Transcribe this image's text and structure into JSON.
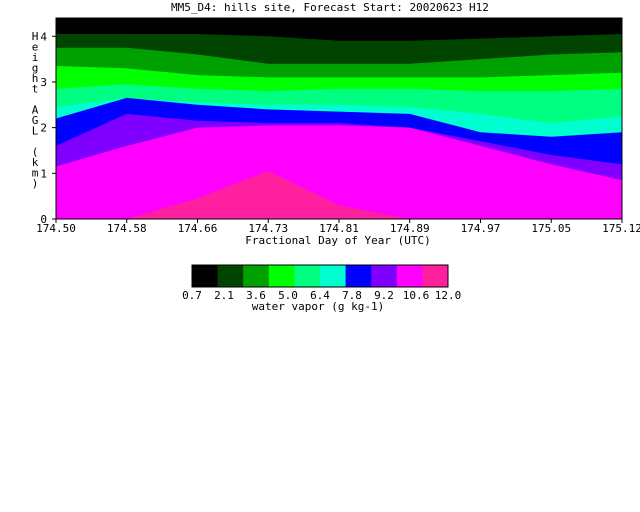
{
  "chart_data": {
    "type": "heatmap",
    "title": "MM5_D4: hills site,  Forecast Start: 20020623 H12",
    "xlabel": "Fractional Day of Year (UTC)",
    "ylabel": "Height AGL (km)",
    "xlim": [
      174.5,
      175.12
    ],
    "ylim": [
      0,
      4.4
    ],
    "x_ticks": [
      "174.50",
      "174.58",
      "174.66",
      "174.73",
      "174.81",
      "174.89",
      "174.97",
      "175.05",
      "175.12"
    ],
    "y_ticks": [
      "0",
      "1",
      "2",
      "3",
      "4"
    ],
    "colorbar": {
      "label": "water vapor (g kg-1)",
      "tick_labels": [
        "0.7",
        "2.1",
        "3.6",
        "5.0",
        "6.4",
        "7.8",
        "9.2",
        "10.6",
        "12.0"
      ],
      "colors": [
        "#000000",
        "#004400",
        "#00a000",
        "#00ff00",
        "#00ff80",
        "#00ffd0",
        "#0000ff",
        "#8000ff",
        "#ff00ff",
        "#ff20a0"
      ]
    },
    "bands": [
      {
        "level": 1,
        "color": "#004400",
        "top_y": [
          4.05,
          4.05,
          4.05,
          4.0,
          3.9,
          3.9,
          3.95,
          4.0,
          4.05
        ]
      },
      {
        "level": 2,
        "color": "#00a000",
        "top_y": [
          3.75,
          3.75,
          3.6,
          3.4,
          3.4,
          3.4,
          3.5,
          3.6,
          3.65
        ]
      },
      {
        "level": 3,
        "color": "#00ff00",
        "top_y": [
          3.35,
          3.3,
          3.15,
          3.1,
          3.1,
          3.1,
          3.1,
          3.15,
          3.2
        ]
      },
      {
        "level": 4,
        "color": "#00ff80",
        "top_y": [
          2.85,
          2.95,
          2.85,
          2.8,
          2.85,
          2.85,
          2.8,
          2.8,
          2.85
        ]
      },
      {
        "level": 5,
        "color": "#00ffd0",
        "top_y": [
          2.45,
          2.65,
          2.55,
          2.5,
          2.5,
          2.45,
          2.3,
          2.1,
          2.25
        ]
      },
      {
        "level": 6,
        "color": "#0000ff",
        "top_y": [
          2.2,
          2.65,
          2.5,
          2.4,
          2.35,
          2.3,
          1.9,
          1.8,
          1.9
        ]
      },
      {
        "level": 7,
        "color": "#8000ff",
        "top_y": [
          1.6,
          2.3,
          2.15,
          2.1,
          2.1,
          2.0,
          1.7,
          1.4,
          1.2
        ]
      },
      {
        "level": 8,
        "color": "#ff00ff",
        "top_y": [
          1.15,
          1.6,
          2.0,
          2.05,
          2.05,
          2.0,
          1.6,
          1.2,
          0.85
        ]
      },
      {
        "level": 9,
        "color": "#ff20a0",
        "top_y": [
          0.0,
          0.0,
          0.45,
          1.05,
          0.3,
          0.0,
          0.0,
          0.0,
          0.0
        ]
      }
    ],
    "background_color": "#000000",
    "grid": false,
    "legend": "colorbar-below"
  }
}
